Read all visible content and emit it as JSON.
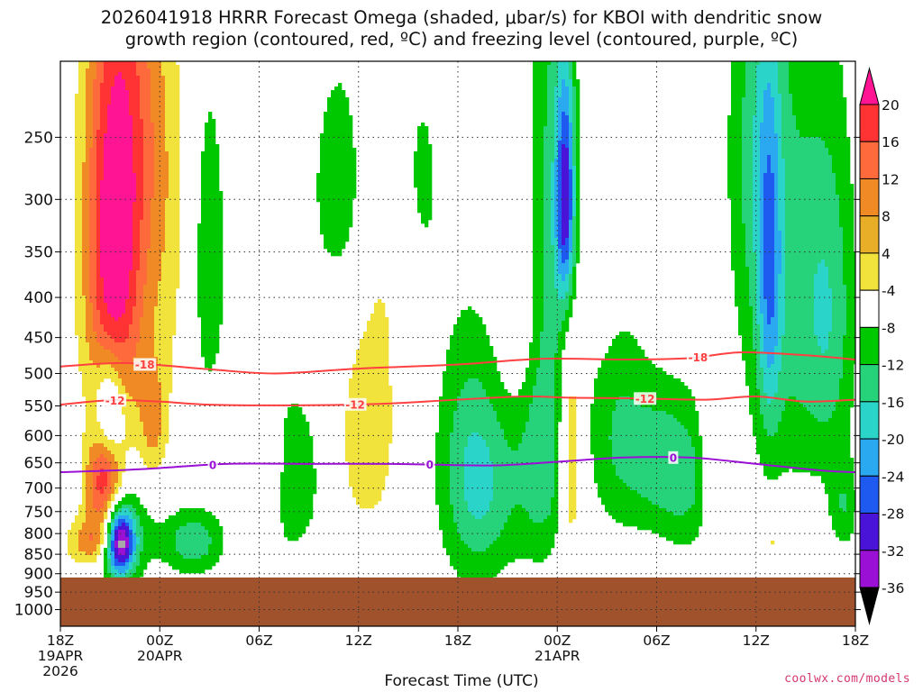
{
  "chart_data": {
    "type": "heatmap",
    "title_line1": "2026041918 HRRR Forecast Omega (shaded, μbar/s) for KBOI with dendritic snow",
    "title_line2": "growth region (contoured, red, ºC) and freezing level (contoured, purple, ºC)",
    "xlabel": "Forecast Time (UTC)",
    "x_ticks": [
      {
        "hour": 0,
        "lines": [
          "18Z",
          "19APR",
          "2026"
        ]
      },
      {
        "hour": 6,
        "lines": [
          "00Z",
          "20APR"
        ]
      },
      {
        "hour": 12,
        "lines": [
          "06Z"
        ]
      },
      {
        "hour": 18,
        "lines": [
          "12Z"
        ]
      },
      {
        "hour": 24,
        "lines": [
          "18Z"
        ]
      },
      {
        "hour": 30,
        "lines": [
          "00Z",
          "21APR"
        ]
      },
      {
        "hour": 36,
        "lines": [
          "06Z"
        ]
      },
      {
        "hour": 42,
        "lines": [
          "12Z"
        ]
      },
      {
        "hour": 48,
        "lines": [
          "18Z"
        ]
      }
    ],
    "x_range_hours": [
      0,
      48
    ],
    "y_ticks": [
      "250",
      "300",
      "350",
      "400",
      "450",
      "500",
      "550",
      "600",
      "650",
      "700",
      "750",
      "800",
      "850",
      "900",
      "950",
      "1000"
    ],
    "y_range_hpa": [
      200,
      1050
    ],
    "surface_pressure_hpa": 910,
    "grid": true,
    "colorbar": {
      "labels": [
        "20",
        "16",
        "12",
        "8",
        "4",
        "-4",
        "-8",
        "-12",
        "-16",
        "-20",
        "-24",
        "-28",
        "-32",
        "-36"
      ],
      "colors": [
        "#ff1493",
        "#ff3333",
        "#ff6a3d",
        "#f08a24",
        "#e8ae28",
        "#f2e33c",
        "#ffffff",
        "#00c800",
        "#26d27a",
        "#2ad4c8",
        "#2aa8f0",
        "#1e5af0",
        "#4a14d8",
        "#9a10d4",
        "#a8a8a8"
      ]
    },
    "omega_blobs": [
      {
        "h": 3.2,
        "p": 345,
        "w": 1.2,
        "d": 150,
        "v": 18
      },
      {
        "h": 3.6,
        "p": 300,
        "w": 1.6,
        "d": 200,
        "v": 7
      },
      {
        "h": 2.6,
        "p": 700,
        "w": 0.8,
        "d": 70,
        "v": 20
      },
      {
        "h": 2.0,
        "p": 820,
        "w": 1.1,
        "d": 45,
        "v": 14
      },
      {
        "h": 3.6,
        "p": 820,
        "w": 0.6,
        "d": 55,
        "v": -30
      },
      {
        "h": 3.0,
        "p": 550,
        "w": 0.6,
        "d": 60,
        "v": -13
      },
      {
        "h": 3.5,
        "p": 800,
        "w": 1.4,
        "d": 90,
        "v": -10
      },
      {
        "h": 5.6,
        "p": 580,
        "w": 0.6,
        "d": 70,
        "v": 8
      },
      {
        "h": 5.0,
        "p": 230,
        "w": 1.2,
        "d": 90,
        "v": 5
      },
      {
        "h": 6.8,
        "p": 340,
        "w": 1.2,
        "d": 150,
        "v": 5
      },
      {
        "h": 8.8,
        "p": 360,
        "w": 1.0,
        "d": 150,
        "v": -7
      },
      {
        "h": 8.0,
        "p": 820,
        "w": 1.3,
        "d": 55,
        "v": -11
      },
      {
        "h": 12.5,
        "p": 660,
        "w": 0.6,
        "d": 80,
        "v": 7
      },
      {
        "h": 14.0,
        "p": 680,
        "w": 1.4,
        "d": 130,
        "v": -7
      },
      {
        "h": 17.0,
        "p": 290,
        "w": 1.4,
        "d": 80,
        "v": -7
      },
      {
        "h": 18.5,
        "p": 610,
        "w": 1.3,
        "d": 130,
        "v": 7
      },
      {
        "h": 20.0,
        "p": 330,
        "w": 1.6,
        "d": 110,
        "v": 5
      },
      {
        "h": 21.5,
        "p": 290,
        "w": 1.2,
        "d": 90,
        "v": -7
      },
      {
        "h": 24.5,
        "p": 650,
        "w": 1.4,
        "d": 180,
        "v": -8
      },
      {
        "h": 26.0,
        "p": 700,
        "w": 1.5,
        "d": 140,
        "v": -8
      },
      {
        "h": 29.8,
        "p": 290,
        "w": 1.1,
        "d": 170,
        "v": -9
      },
      {
        "h": 30.5,
        "p": 300,
        "w": 0.4,
        "d": 70,
        "v": -22
      },
      {
        "h": 29.2,
        "p": 650,
        "w": 1.1,
        "d": 150,
        "v": -10
      },
      {
        "h": 30.8,
        "p": 620,
        "w": 0.5,
        "d": 160,
        "v": 11
      },
      {
        "h": 27.6,
        "p": 400,
        "w": 0.8,
        "d": 90,
        "v": 5
      },
      {
        "h": 33.5,
        "p": 580,
        "w": 1.3,
        "d": 150,
        "v": -7
      },
      {
        "h": 32.7,
        "p": 290,
        "w": 0.9,
        "d": 110,
        "v": 5
      },
      {
        "h": 36.0,
        "p": 640,
        "w": 1.5,
        "d": 100,
        "v": -8
      },
      {
        "h": 38.0,
        "p": 690,
        "w": 1.4,
        "d": 110,
        "v": -7
      },
      {
        "h": 39.4,
        "p": 600,
        "w": 0.5,
        "d": 140,
        "v": 7
      },
      {
        "h": 42.0,
        "p": 250,
        "w": 1.2,
        "d": 110,
        "v": -7
      },
      {
        "h": 44.0,
        "p": 400,
        "w": 2.0,
        "d": 200,
        "v": -9
      },
      {
        "h": 42.8,
        "p": 380,
        "w": 0.5,
        "d": 140,
        "v": -12
      },
      {
        "h": 46.5,
        "p": 420,
        "w": 1.1,
        "d": 150,
        "v": -8
      },
      {
        "h": 47.3,
        "p": 740,
        "w": 0.6,
        "d": 70,
        "v": -7
      },
      {
        "h": 43.0,
        "p": 820,
        "w": 0.5,
        "d": 40,
        "v": 5
      }
    ],
    "contours": [
      {
        "label": "-18",
        "color": "#ff4040",
        "points": [
          [
            0,
            490
          ],
          [
            4,
            485
          ],
          [
            9,
            494
          ],
          [
            13,
            500
          ],
          [
            18,
            493
          ],
          [
            24,
            487
          ],
          [
            29,
            479
          ],
          [
            34,
            480
          ],
          [
            38,
            478
          ],
          [
            41,
            470
          ],
          [
            45,
            474
          ],
          [
            48,
            480
          ]
        ],
        "label_positions": [
          5.1,
          38.5
        ]
      },
      {
        "label": "-12",
        "color": "#ff4040",
        "points": [
          [
            0,
            548
          ],
          [
            3,
            541
          ],
          [
            6,
            543
          ],
          [
            9,
            548
          ],
          [
            14,
            549
          ],
          [
            19,
            547
          ],
          [
            24,
            540
          ],
          [
            28,
            535
          ],
          [
            31,
            537
          ],
          [
            35,
            538
          ],
          [
            39,
            540
          ],
          [
            42,
            535
          ],
          [
            45,
            543
          ],
          [
            48,
            540
          ]
        ],
        "label_positions": [
          3.3,
          17.8,
          35.3
        ]
      },
      {
        "label": "0",
        "color": "#9a10d4",
        "points": [
          [
            0,
            668
          ],
          [
            3,
            665
          ],
          [
            6,
            660
          ],
          [
            10,
            652
          ],
          [
            15,
            652
          ],
          [
            20,
            652
          ],
          [
            26,
            655
          ],
          [
            30,
            648
          ],
          [
            34,
            640
          ],
          [
            38,
            640
          ],
          [
            42,
            652
          ],
          [
            46,
            665
          ],
          [
            48,
            668
          ]
        ],
        "label_positions": [
          9.2,
          22.3,
          37.0
        ]
      }
    ]
  },
  "credit": "coolwx.com/models"
}
